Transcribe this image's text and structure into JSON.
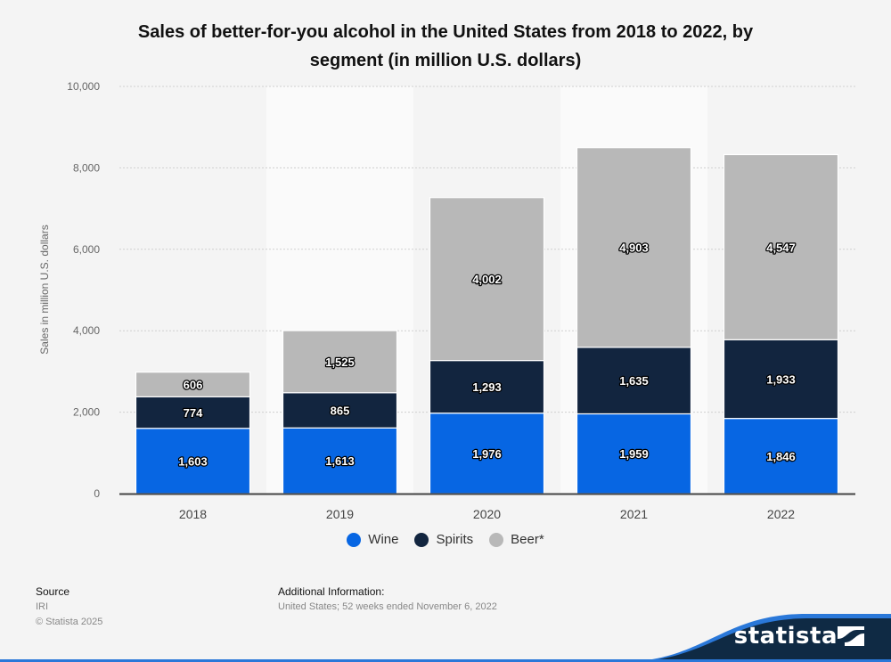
{
  "title": "Sales of better-for-you alcohol in the United States from 2018 to 2022, by segment (in million U.S. dollars)",
  "title_line1": "Sales of better-for-you alcohol in the United States from 2018 to 2022, by",
  "title_line2": "segment (in million U.S. dollars)",
  "chart_data": {
    "type": "bar",
    "stacked": true,
    "title": "Sales of better-for-you alcohol in the United States from 2018 to 2022, by segment (in million U.S. dollars)",
    "xlabel": "",
    "ylabel": "Sales in million U.S. dollars",
    "categories": [
      "2018",
      "2019",
      "2020",
      "2021",
      "2022"
    ],
    "series": [
      {
        "name": "Wine",
        "color": "#0766e3",
        "values": [
          1603,
          1613,
          1976,
          1959,
          1846
        ],
        "labels": [
          "1,603",
          "1,613",
          "1,976",
          "1,959",
          "1,846"
        ]
      },
      {
        "name": "Spirits",
        "color": "#12253f",
        "values": [
          774,
          865,
          1293,
          1635,
          1933
        ],
        "labels": [
          "774",
          "865",
          "1,293",
          "1,635",
          "1,933"
        ]
      },
      {
        "name": "Beer*",
        "color": "#b8b8b8",
        "values": [
          606,
          1525,
          4002,
          4903,
          4547
        ],
        "labels": [
          "606",
          "1,525",
          "4,002",
          "4,903",
          "4,547"
        ]
      }
    ],
    "ylim": [
      0,
      10000
    ],
    "yticks": [
      0,
      2000,
      4000,
      6000,
      8000,
      10000
    ],
    "ytick_labels": [
      "0",
      "2,000",
      "4,000",
      "6,000",
      "8,000",
      "10,000"
    ],
    "grid": true,
    "legend": "bottom-center"
  },
  "footer": {
    "source_heading": "Source",
    "source_value": "IRI",
    "copyright": "© Statista 2025",
    "additional_heading": "Additional Information:",
    "additional_value": "United States; 52 weeks ended November 6, 2022"
  },
  "brand": {
    "name": "statista",
    "logo_icon": "statista-logo-icon"
  }
}
